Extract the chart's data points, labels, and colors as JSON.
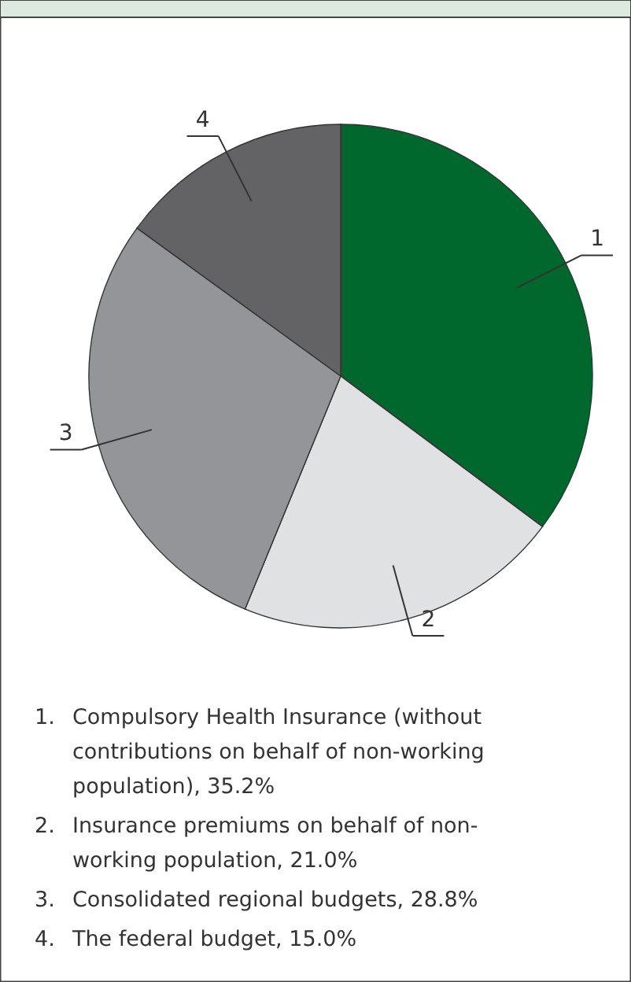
{
  "chart_data": {
    "type": "pie",
    "categories": [
      "1",
      "2",
      "3",
      "4"
    ],
    "values": [
      35.2,
      21.0,
      28.8,
      15.0
    ],
    "colors": [
      "#00672d",
      "#e0e1e3",
      "#939598",
      "#636365"
    ],
    "annotations": [
      "1. Compulsory Health Insurance (without contributions on behalf of non-working population), 35.2%",
      "2. Insurance premiums on behalf of non-working population, 21.0%",
      "3. Consolidated regional budgets, 28.8%",
      "4. The federal budget, 15.0%"
    ]
  }
}
